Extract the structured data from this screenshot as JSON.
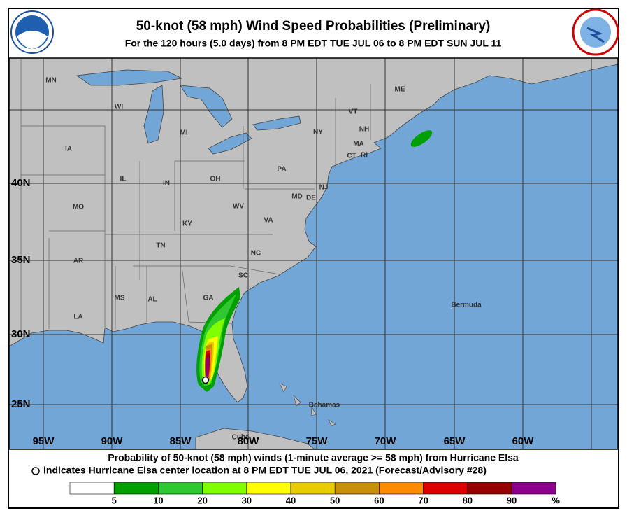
{
  "header": {
    "title": "50-knot (58 mph) Wind Speed Probabilities (Preliminary)",
    "subtitle": "For the 120 hours (5.0 days) from 8 PM EDT TUE JUL 06 to 8 PM EDT SUN JUL 11"
  },
  "map": {
    "region_labels": [
      "MN",
      "WI",
      "MI",
      "IA",
      "IL",
      "IN",
      "OH",
      "PA",
      "NY",
      "VT",
      "NH",
      "ME",
      "MA",
      "CT",
      "RI",
      "NJ",
      "DE",
      "MD",
      "WV",
      "VA",
      "KY",
      "MO",
      "TN",
      "NC",
      "AR",
      "SC",
      "MS",
      "AL",
      "GA",
      "LA"
    ],
    "place_labels": [
      "Bermuda",
      "Bahamas",
      "Cuba"
    ],
    "lat_labels": [
      "40N",
      "35N",
      "30N",
      "25N"
    ],
    "lon_labels": [
      "95W",
      "90W",
      "85W",
      "80W",
      "75W",
      "70W",
      "65W",
      "60W"
    ]
  },
  "footer": {
    "line1": "Probability of 50-knot (58 mph) winds (1-minute average >= 58 mph) from Hurricane Elsa",
    "line2": "indicates Hurricane Elsa center location at 8 PM EDT TUE JUL 06, 2021 (Forecast/Advisory #28)"
  },
  "legend": {
    "colors": [
      "#ffffff",
      "#00a000",
      "#30c830",
      "#80ff00",
      "#ffff00",
      "#e6cc00",
      "#c8900a",
      "#ff8c00",
      "#dc0000",
      "#960000",
      "#8c008c"
    ],
    "ticks": [
      5,
      10,
      20,
      30,
      40,
      50,
      60,
      70,
      80,
      90
    ],
    "unit": "%"
  }
}
